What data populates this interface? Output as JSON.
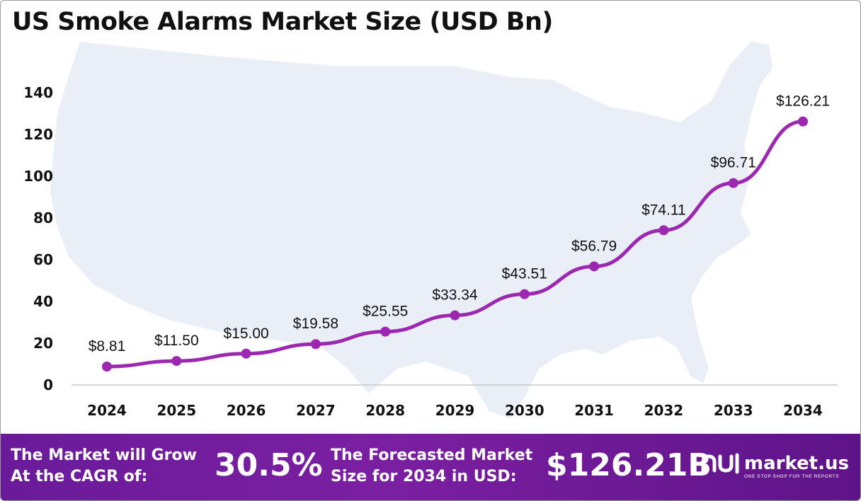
{
  "title": "US Smoke Alarms Market Size (USD Bn)",
  "colors": {
    "line": "#9c27b0",
    "map": "#e9eef7",
    "footer": "#6a1b9a",
    "text": "#111111"
  },
  "chart_data": {
    "type": "line",
    "x": [
      "2024",
      "2025",
      "2026",
      "2027",
      "2028",
      "2029",
      "2030",
      "2031",
      "2032",
      "2033",
      "2034"
    ],
    "series": [
      {
        "values": [
          8.81,
          11.5,
          15.0,
          19.58,
          25.55,
          33.34,
          43.51,
          56.79,
          74.11,
          96.71,
          126.21
        ]
      }
    ],
    "data_labels": [
      "$8.81",
      "$11.50",
      "$15.00",
      "$19.58",
      "$25.55",
      "$33.34",
      "$43.51",
      "$56.79",
      "$74.11",
      "$96.71",
      "$126.21"
    ],
    "y_ticks": [
      "0",
      "20",
      "40",
      "60",
      "80",
      "100",
      "120",
      "140"
    ],
    "ylim": [
      0,
      140
    ],
    "grid": false,
    "legend": "none"
  },
  "footer": {
    "cagr_label_line1": "The Market will Grow",
    "cagr_label_line2": "At the CAGR of:",
    "cagr_value": "30.5%",
    "forecast_label_line1": "The Forecasted Market",
    "forecast_label_line2": "Size for 2034 in USD:",
    "forecast_value": "$126.21B",
    "brand_name": "market.us",
    "brand_tagline": "ONE STOP SHOP FOR THE REPORTS",
    "brand_icon": "market-us-logo-icon"
  }
}
